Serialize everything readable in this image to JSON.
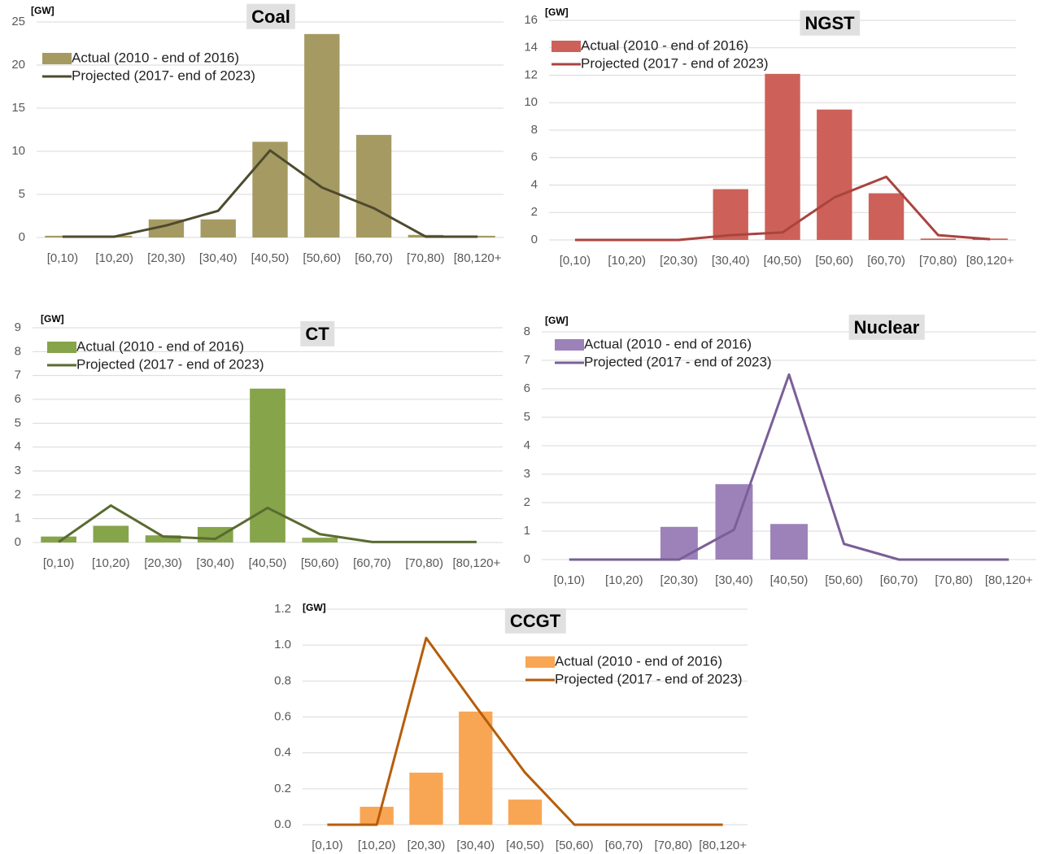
{
  "chart_data": [
    {
      "type": "combo",
      "title": "Coal",
      "y_label": "[GW]",
      "categories": [
        "[0,10)",
        "[10,20)",
        "[20,30)",
        "[30,40)",
        "[40,50)",
        "[50,60)",
        "[60,70)",
        "[70,80)",
        "[80,120+"
      ],
      "series": [
        {
          "name": "Actual (2010 - end of 2016)",
          "kind": "bar",
          "color": "#a59a62",
          "values": [
            0.2,
            0.2,
            2.1,
            2.1,
            11.1,
            23.6,
            11.9,
            0.3,
            0.2
          ]
        },
        {
          "name": "Projected (2017- end of 2023)",
          "kind": "line",
          "color": "#4d4a2e",
          "values": [
            0.1,
            0.1,
            1.4,
            3.1,
            10.1,
            5.8,
            3.4,
            0.1,
            0.1
          ]
        }
      ],
      "ylim": [
        0,
        25
      ],
      "yticks": [
        0,
        5,
        10,
        15,
        20,
        25
      ],
      "grid": true
    },
    {
      "type": "combo",
      "title": "NGST",
      "y_label": "[GW]",
      "categories": [
        "[0,10)",
        "[10,20)",
        "[20,30)",
        "[30,40)",
        "[40,50)",
        "[50,60)",
        "[60,70)",
        "[70,80)",
        "[80,120+"
      ],
      "series": [
        {
          "name": "Actual (2010 - end of 2016)",
          "kind": "bar",
          "color": "#cd6159",
          "values": [
            0,
            0,
            0,
            3.7,
            12.1,
            9.5,
            3.4,
            0.1,
            0.1
          ]
        },
        {
          "name": "Projected (2017 - end of 2023)",
          "kind": "line",
          "color": "#a9443f",
          "values": [
            0,
            0,
            0,
            0.35,
            0.55,
            3.1,
            4.6,
            0.35,
            0.05
          ]
        }
      ],
      "ylim": [
        0,
        16
      ],
      "yticks": [
        0,
        2,
        4,
        6,
        8,
        10,
        12,
        14,
        16
      ],
      "grid": true
    },
    {
      "type": "combo",
      "title": "CT",
      "y_label": "[GW]",
      "categories": [
        "[0,10)",
        "[10,20)",
        "[20,30)",
        "[30,40)",
        "[40,50)",
        "[50,60)",
        "[60,70)",
        "[70,80)",
        "[80,120+"
      ],
      "series": [
        {
          "name": "Actual (2010 - end of 2016)",
          "kind": "bar",
          "color": "#86a44a",
          "values": [
            0.25,
            0.7,
            0.3,
            0.65,
            6.45,
            0.2,
            0,
            0,
            0
          ]
        },
        {
          "name": "Projected (2017 - end of 2023)",
          "kind": "line",
          "color": "#5a6b30",
          "values": [
            0.02,
            1.55,
            0.25,
            0.15,
            1.45,
            0.35,
            0.02,
            0.02,
            0.02
          ]
        }
      ],
      "ylim": [
        0,
        9
      ],
      "yticks": [
        0,
        1,
        2,
        3,
        4,
        5,
        6,
        7,
        8,
        9
      ],
      "grid": true
    },
    {
      "type": "combo",
      "title": "Nuclear",
      "y_label": "[GW]",
      "categories": [
        "[0,10)",
        "[10,20)",
        "[20,30)",
        "[30,40)",
        "[40,50)",
        "[50,60)",
        "[60,70)",
        "[70,80)",
        "[80,120+"
      ],
      "series": [
        {
          "name": "Actual (2010 - end of 2016)",
          "kind": "bar",
          "color": "#9c82b8",
          "values": [
            0,
            0,
            1.15,
            2.65,
            1.25,
            0,
            0,
            0,
            0
          ]
        },
        {
          "name": "Projected (2017 - end of 2023)",
          "kind": "line",
          "color": "#7a5f99",
          "values": [
            0,
            0,
            0,
            1.05,
            6.5,
            0.55,
            0,
            0,
            0
          ]
        }
      ],
      "ylim": [
        0,
        8
      ],
      "yticks": [
        0,
        1,
        2,
        3,
        4,
        5,
        6,
        7,
        8
      ],
      "grid": true
    },
    {
      "type": "combo",
      "title": "CCGT",
      "y_label": "[GW]",
      "categories": [
        "[0,10)",
        "[10,20)",
        "[20,30)",
        "[30,40)",
        "[40,50)",
        "[50,60)",
        "[60,70)",
        "[70,80)",
        "[80,120+"
      ],
      "series": [
        {
          "name": "Actual (2010 - end of 2016)",
          "kind": "bar",
          "color": "#f9a654",
          "values": [
            0,
            0.1,
            0.29,
            0.63,
            0.14,
            0,
            0,
            0,
            0
          ]
        },
        {
          "name": "Projected (2017 - end of 2023)",
          "kind": "line",
          "color": "#b65d0a",
          "values": [
            0,
            0,
            1.04,
            0.66,
            0.29,
            0,
            0,
            0,
            0
          ]
        }
      ],
      "ylim": [
        0,
        1.2
      ],
      "yticks": [
        {
          "value": 0,
          "label": "0.0"
        },
        0.2,
        0.4,
        0.6,
        0.8,
        {
          "value": 1,
          "label": "1.0"
        },
        1.2
      ],
      "grid": true
    }
  ]
}
